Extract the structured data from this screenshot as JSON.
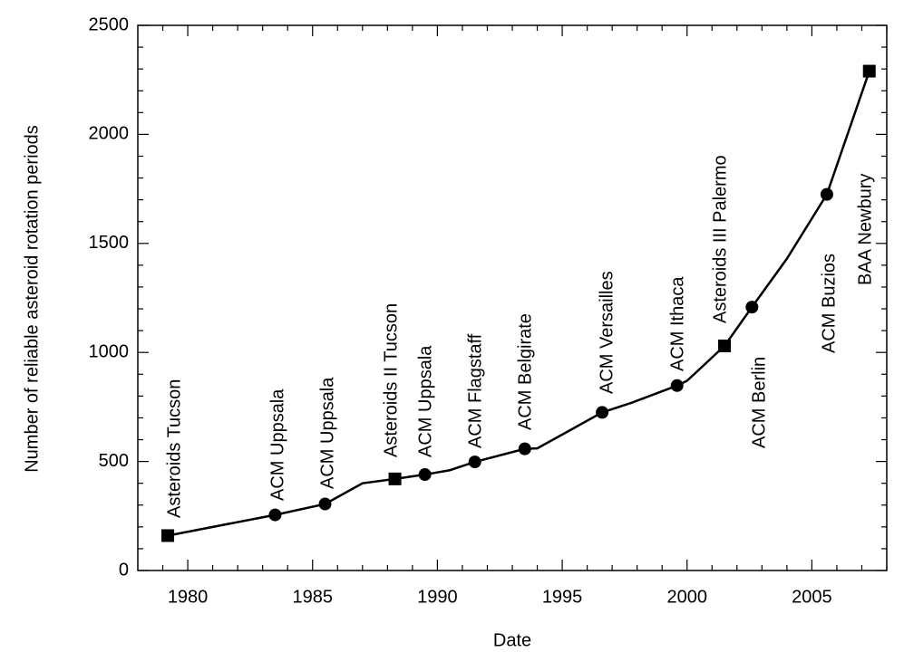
{
  "chart_data": {
    "type": "line",
    "x_label": "Date",
    "y_label": "Number of reliable asteroid rotation periods",
    "xlim": [
      1978,
      2008
    ],
    "xticks": [
      1980,
      1985,
      1990,
      1995,
      2000,
      2005
    ],
    "ylim": [
      0,
      2500
    ],
    "yticks": [
      0,
      500,
      1000,
      1500,
      2000,
      2500
    ],
    "color": "#000000",
    "x": [
      1979.2,
      1983.5,
      1985.5,
      1987,
      1988.3,
      1989.5,
      1990.5,
      1991.5,
      1993.5,
      1994,
      1996.6,
      1997.8,
      1999.6,
      2000,
      2001.5,
      2002.6,
      2004,
      2005.6,
      2007.3
    ],
    "values": [
      160,
      255,
      305,
      400,
      420,
      440,
      460,
      498,
      558,
      560,
      725,
      770,
      848,
      870,
      1030,
      1208,
      1430,
      1725,
      2290
    ],
    "labels": [
      "Asteroids Tucson",
      "ACM Uppsala",
      "ACM Uppsala",
      null,
      "Asteroids II Tucson",
      "ACM Uppsala",
      null,
      "ACM Flagstaff",
      "ACM Belgirate",
      null,
      "ACM Versailles",
      null,
      "ACM Ithaca",
      null,
      "Asteroids III Palermo",
      "ACM Berlin",
      null,
      "ACM Buzios",
      "BAA Newbury"
    ],
    "markers": [
      "square",
      "circle",
      "circle",
      null,
      "square",
      "circle",
      null,
      "circle",
      "circle",
      null,
      "circle",
      null,
      "circle",
      null,
      "square",
      "circle",
      null,
      "circle",
      "square"
    ]
  }
}
